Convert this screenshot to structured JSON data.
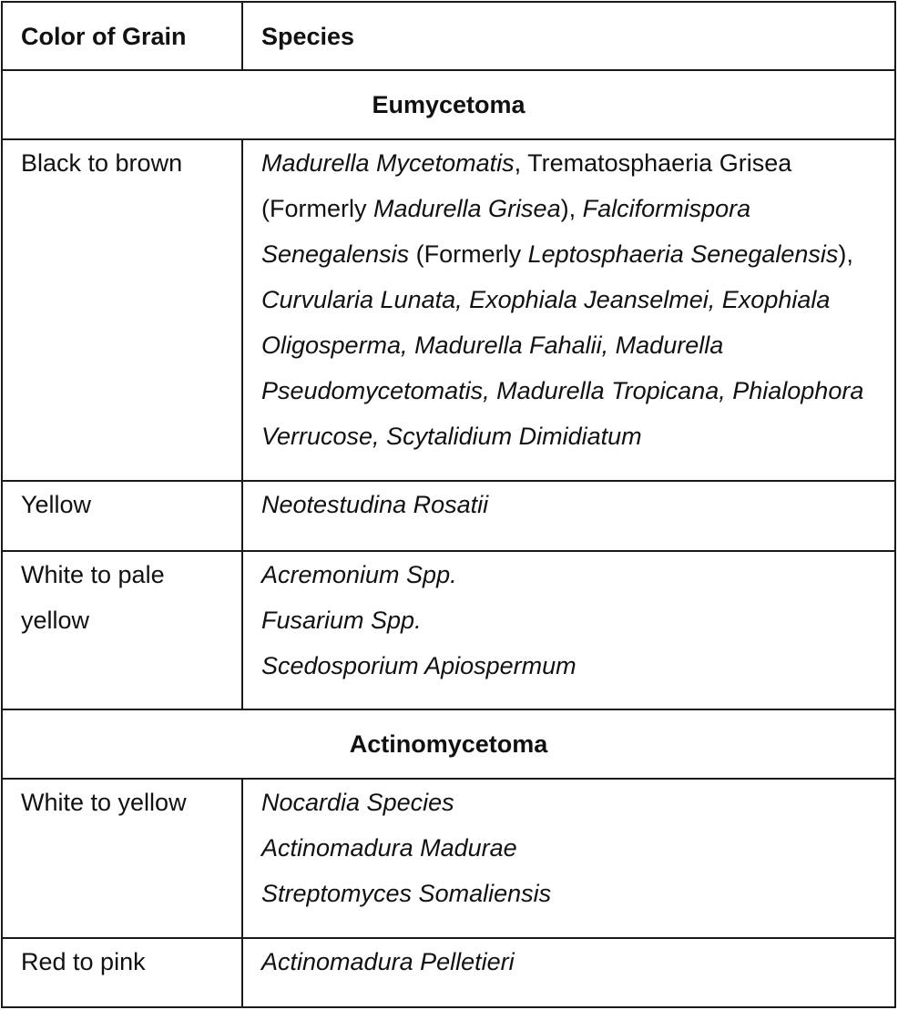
{
  "table": {
    "headers": [
      "Color of Grain",
      "Species"
    ],
    "sections": [
      {
        "title": "Eumycetoma",
        "rows": [
          {
            "color": "Black to brown",
            "species": [
              {
                "text": "Madurella Mycetomatis",
                "italic": true
              },
              {
                "text": ", Trematosphaeria Grisea (Formerly ",
                "italic": false
              },
              {
                "text": "Madurella Grisea",
                "italic": true
              },
              {
                "text": "), ",
                "italic": false
              },
              {
                "text": "Falciformispora Senegalensis",
                "italic": true
              },
              {
                "text": " (Formerly ",
                "italic": false
              },
              {
                "text": "Leptosphaeria Senegalensis",
                "italic": true
              },
              {
                "text": "), ",
                "italic": false
              },
              {
                "text": "Curvularia Lunata, Exophiala Jeanselmei, Exophiala Oligosperma, Madurella Fahalii, Madurella Pseudomycetomatis, Madurella Tropicana, Phialophora Verrucose, Scytalidium Dimidiatum",
                "italic": true
              }
            ]
          },
          {
            "color": "Yellow",
            "species_lines": [
              "Neotestudina Rosatii"
            ]
          },
          {
            "color": "White to pale yellow",
            "species_lines": [
              "Acremonium Spp.",
              "Fusarium Spp.",
              "Scedosporium Apiospermum"
            ]
          }
        ]
      },
      {
        "title": "Actinomycetoma",
        "rows": [
          {
            "color": "White to yellow",
            "species_lines": [
              "Nocardia Species",
              "Actinomadura Madurae",
              "Streptomyces Somaliensis"
            ]
          },
          {
            "color": "Red to pink",
            "species_lines": [
              "Actinomadura Pelletieri"
            ]
          }
        ]
      }
    ]
  }
}
